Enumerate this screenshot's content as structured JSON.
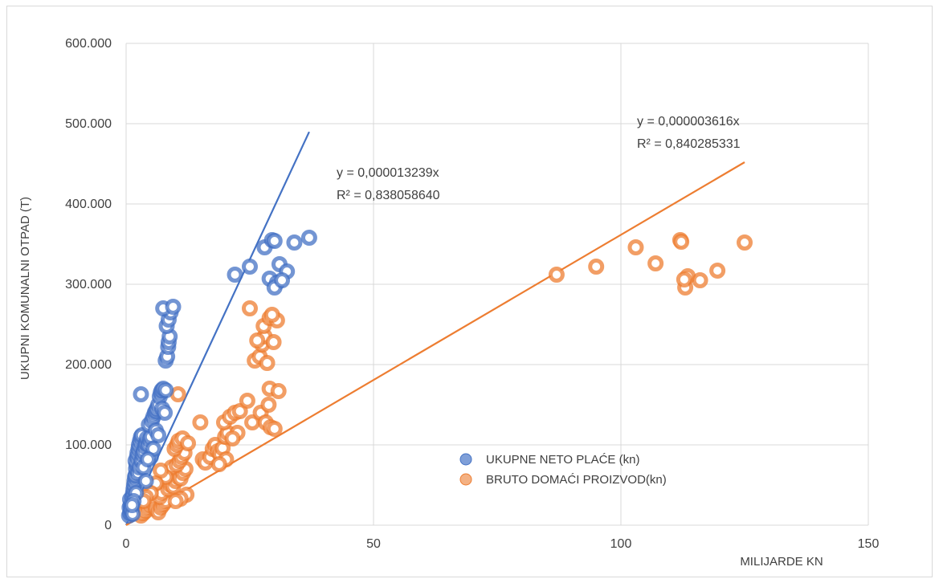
{
  "chart_data": {
    "type": "scatter",
    "xlabel": "MILIJARDE KN",
    "ylabel": "UKUPNI KOMUNALNI OTPAD (T)",
    "xlim": [
      0,
      150
    ],
    "ylim": [
      0,
      600000
    ],
    "x_ticks": [
      0,
      50,
      100,
      150
    ],
    "y_ticks": [
      0,
      100000,
      200000,
      300000,
      400000,
      500000,
      600000
    ],
    "x_tick_labels": [
      "0",
      "50",
      "100",
      "150"
    ],
    "y_tick_labels": [
      "0",
      "100.000",
      "200.000",
      "300.000",
      "400.000",
      "500.000",
      "600.000"
    ],
    "grid": true,
    "legend_position": "bottom-right-center",
    "series": [
      {
        "name": "UKUPNE NETO PLAĆE (kn)",
        "color": "#4472c4",
        "trendline": {
          "slope": 1.3239e-05,
          "x_end": 37,
          "equation": "y = 0,000013239x",
          "r2": "R² = 0,838058640"
        },
        "points": [
          [
            0.6,
            12000
          ],
          [
            0.8,
            15000
          ],
          [
            1.0,
            18000
          ],
          [
            0.7,
            22000
          ],
          [
            0.9,
            25000
          ],
          [
            1.1,
            28000
          ],
          [
            0.8,
            32000
          ],
          [
            1.2,
            35000
          ],
          [
            1.0,
            20000
          ],
          [
            1.3,
            14000
          ],
          [
            1.4,
            40000
          ],
          [
            1.5,
            45000
          ],
          [
            1.6,
            50000
          ],
          [
            1.7,
            55000
          ],
          [
            1.8,
            60000
          ],
          [
            1.9,
            62000
          ],
          [
            2.0,
            70000
          ],
          [
            2.1,
            75000
          ],
          [
            1.9,
            80000
          ],
          [
            2.2,
            85000
          ],
          [
            2.3,
            90000
          ],
          [
            2.5,
            95000
          ],
          [
            2.6,
            100000
          ],
          [
            2.8,
            105000
          ],
          [
            3.0,
            110000
          ],
          [
            3.2,
            112000
          ],
          [
            2.4,
            65000
          ],
          [
            2.7,
            72000
          ],
          [
            3.1,
            80000
          ],
          [
            3.3,
            88000
          ],
          [
            3.5,
            92000
          ],
          [
            3.8,
            98000
          ],
          [
            4.0,
            102000
          ],
          [
            4.2,
            108000
          ],
          [
            4.5,
            100000
          ],
          [
            4.8,
            106000
          ],
          [
            5.0,
            110000
          ],
          [
            4.6,
            125000
          ],
          [
            5.2,
            130000
          ],
          [
            5.5,
            135000
          ],
          [
            5.8,
            140000
          ],
          [
            6.0,
            142000
          ],
          [
            6.2,
            145000
          ],
          [
            6.5,
            150000
          ],
          [
            6.8,
            160000
          ],
          [
            7.0,
            165000
          ],
          [
            7.2,
            168000
          ],
          [
            7.5,
            170000
          ],
          [
            8.0,
            168000
          ],
          [
            7.3,
            145000
          ],
          [
            7.8,
            140000
          ],
          [
            8.0,
            205000
          ],
          [
            8.3,
            210000
          ],
          [
            8.5,
            222000
          ],
          [
            8.6,
            228000
          ],
          [
            8.8,
            235000
          ],
          [
            8.2,
            248000
          ],
          [
            8.6,
            256000
          ],
          [
            9.0,
            265000
          ],
          [
            7.5,
            270000
          ],
          [
            9.5,
            272000
          ],
          [
            3.0,
            163000
          ],
          [
            3.5,
            72000
          ],
          [
            4.0,
            55000
          ],
          [
            5.0,
            85000
          ],
          [
            6.0,
            118000
          ],
          [
            6.5,
            112000
          ],
          [
            5.5,
            95000
          ],
          [
            4.4,
            82000
          ],
          [
            2.0,
            40000
          ],
          [
            1.5,
            30000
          ],
          [
            1.2,
            25000
          ],
          [
            22.0,
            312000
          ],
          [
            25.0,
            322000
          ],
          [
            28.0,
            346000
          ],
          [
            29.5,
            355000
          ],
          [
            30.0,
            354000
          ],
          [
            34.0,
            352000
          ],
          [
            37.0,
            358000
          ],
          [
            31.0,
            325000
          ],
          [
            32.5,
            316000
          ],
          [
            29.0,
            307000
          ],
          [
            30.5,
            302000
          ],
          [
            30.0,
            296000
          ],
          [
            31.5,
            305000
          ]
        ]
      },
      {
        "name": "BRUTO DOMAĆI PROIZVOD(kn)",
        "color": "#ed7d31",
        "trendline": {
          "slope": 3.616e-06,
          "x_end": 125,
          "equation": "y = 0,000003616x",
          "r2": "R² = 0,840285331"
        },
        "points": [
          [
            3.0,
            12000
          ],
          [
            3.5,
            15000
          ],
          [
            4.0,
            18000
          ],
          [
            4.5,
            22000
          ],
          [
            5.0,
            25000
          ],
          [
            5.5,
            28000
          ],
          [
            6.0,
            20000
          ],
          [
            6.5,
            16000
          ],
          [
            7.0,
            22000
          ],
          [
            7.5,
            26000
          ],
          [
            8.0,
            30000
          ],
          [
            6.8,
            35000
          ],
          [
            7.2,
            40000
          ],
          [
            8.5,
            45000
          ],
          [
            9.0,
            50000
          ],
          [
            9.5,
            48000
          ],
          [
            10.0,
            55000
          ],
          [
            10.5,
            60000
          ],
          [
            11.0,
            58000
          ],
          [
            11.5,
            65000
          ],
          [
            12.0,
            70000
          ],
          [
            9.2,
            72000
          ],
          [
            10.2,
            75000
          ],
          [
            10.8,
            80000
          ],
          [
            11.2,
            85000
          ],
          [
            11.8,
            90000
          ],
          [
            9.8,
            95000
          ],
          [
            10.3,
            100000
          ],
          [
            10.6,
            105000
          ],
          [
            11.4,
            108000
          ],
          [
            12.5,
            102000
          ],
          [
            12.2,
            38000
          ],
          [
            11.0,
            33000
          ],
          [
            10.0,
            30000
          ],
          [
            8.0,
            60000
          ],
          [
            7.0,
            68000
          ],
          [
            6.0,
            52000
          ],
          [
            5.0,
            40000
          ],
          [
            4.0,
            35000
          ],
          [
            3.5,
            30000
          ],
          [
            10.5,
            163000
          ],
          [
            15.0,
            128000
          ],
          [
            15.5,
            82000
          ],
          [
            16.0,
            78000
          ],
          [
            17.0,
            85000
          ],
          [
            17.5,
            95000
          ],
          [
            18.0,
            100000
          ],
          [
            18.5,
            92000
          ],
          [
            19.0,
            88000
          ],
          [
            19.5,
            96000
          ],
          [
            20.0,
            110000
          ],
          [
            20.5,
            115000
          ],
          [
            19.8,
            128000
          ],
          [
            21.0,
            135000
          ],
          [
            22.0,
            140000
          ],
          [
            23.0,
            142000
          ],
          [
            24.5,
            155000
          ],
          [
            20.2,
            82000
          ],
          [
            18.8,
            76000
          ],
          [
            22.5,
            115000
          ],
          [
            21.5,
            108000
          ],
          [
            25.5,
            128000
          ],
          [
            26.0,
            205000
          ],
          [
            27.0,
            210000
          ],
          [
            27.5,
            225000
          ],
          [
            28.0,
            235000
          ],
          [
            26.5,
            230000
          ],
          [
            27.8,
            248000
          ],
          [
            29.0,
            258000
          ],
          [
            30.5,
            255000
          ],
          [
            25.0,
            270000
          ],
          [
            29.5,
            262000
          ],
          [
            28.5,
            202000
          ],
          [
            29.8,
            228000
          ],
          [
            27.2,
            140000
          ],
          [
            28.2,
            128000
          ],
          [
            29.2,
            122000
          ],
          [
            28.8,
            150000
          ],
          [
            29.0,
            170000
          ],
          [
            30.8,
            167000
          ],
          [
            30.0,
            120000
          ],
          [
            87.0,
            312000
          ],
          [
            95.0,
            322000
          ],
          [
            103.0,
            346000
          ],
          [
            107.0,
            326000
          ],
          [
            112.0,
            355000
          ],
          [
            112.2,
            353000
          ],
          [
            113.0,
            296000
          ],
          [
            113.5,
            310000
          ],
          [
            116.0,
            305000
          ],
          [
            119.5,
            317000
          ],
          [
            125.0,
            352000
          ],
          [
            112.8,
            306000
          ]
        ]
      }
    ]
  }
}
